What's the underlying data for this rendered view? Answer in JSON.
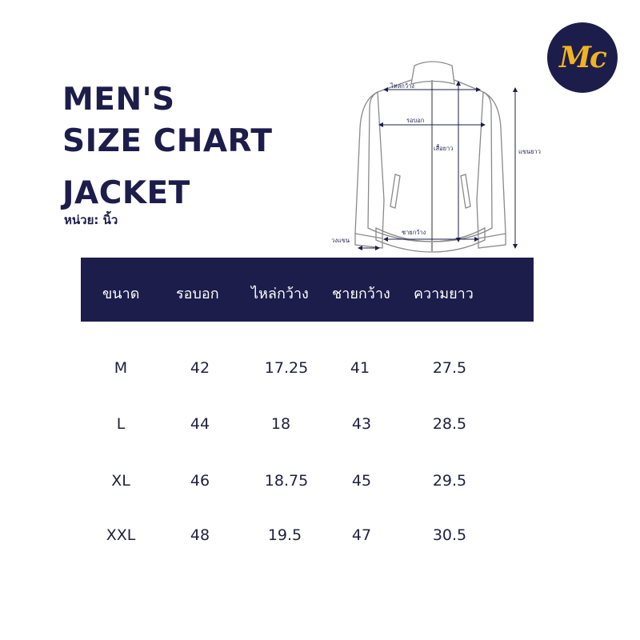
{
  "title": {
    "line1": "MEN'S",
    "line2": "SIZE CHART",
    "line3": "JACKET",
    "unit": "หน่วย: นิ้ว"
  },
  "logo": {
    "text": "Mc",
    "colors": {
      "circle": "#1c1d4a",
      "text": "#f0b321"
    }
  },
  "diagram": {
    "labels": {
      "shoulder": "ไหล่กว้าง",
      "chest": "รอบอก",
      "body_length": "เสื้อยาว",
      "sleeve_length": "แขนยาว",
      "hem": "ชายกว้าง",
      "cuff": "วงแขน"
    }
  },
  "table": {
    "headers": [
      "ขนาด",
      "รอบอก",
      "ไหล่กว้าง",
      "ชายกว้าง",
      "ความยาว"
    ],
    "rows": [
      [
        "M",
        "42",
        "17.25",
        "41",
        "27.5"
      ],
      [
        "L",
        "44",
        "18",
        "43",
        "28.5"
      ],
      [
        "XL",
        "46",
        "18.75",
        "45",
        "29.5"
      ],
      [
        "XXL",
        "48",
        "19.5",
        "47",
        "30.5"
      ]
    ]
  },
  "colors": {
    "navy": "#1c1d4a",
    "gold": "#f0b321",
    "text": "#1f1f3f"
  }
}
